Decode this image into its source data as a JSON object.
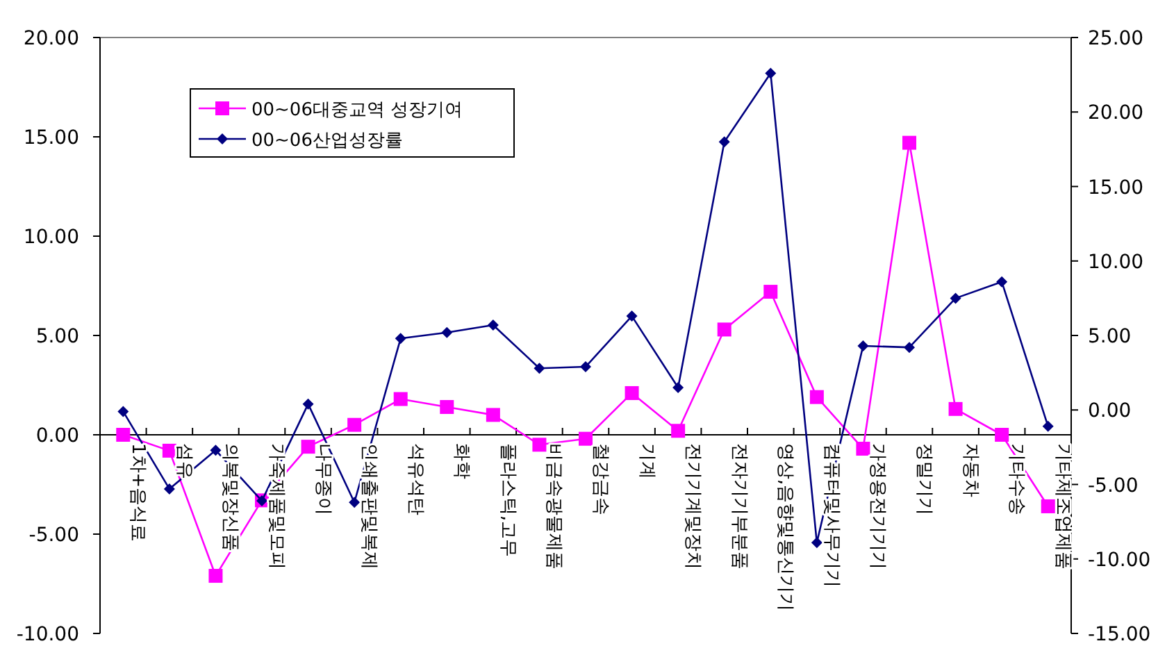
{
  "chart_data": {
    "type": "line",
    "categories": [
      "1차+음식료",
      "섬유",
      "의복및장신품",
      "가죽제품및모피",
      "나무종이",
      "인쇄출판및복제",
      "석유석탄",
      "화학",
      "플라스틱,고무",
      "비금속광물제품",
      "철강금속",
      "기계",
      "전기기계및장치",
      "전자기기부분품",
      "영상,음향및통신기기",
      "컴퓨터및사무기기",
      "가정용전기기기",
      "정밀기기",
      "자동차",
      "기타수송",
      "기타제조업제품"
    ],
    "series": [
      {
        "name": "00~06대중교역 성장기여",
        "color": "#ff00ff",
        "marker": "square",
        "values": [
          0.0,
          -0.8,
          -7.1,
          -3.3,
          -0.6,
          0.5,
          1.8,
          1.4,
          1.0,
          -0.5,
          -0.2,
          2.1,
          0.2,
          5.3,
          7.2,
          1.9,
          -0.7,
          14.7,
          1.3,
          0.0,
          -3.6
        ]
      },
      {
        "name": "00~06산업성장률",
        "color": "#000080",
        "marker": "diamond",
        "axis": "y2",
        "values": [
          -0.1,
          -5.3,
          -2.7,
          -6.1,
          0.4,
          -6.2,
          4.8,
          5.2,
          5.7,
          2.8,
          2.9,
          6.3,
          1.5,
          18.0,
          22.6,
          -8.9,
          4.3,
          4.2,
          7.5,
          8.6,
          -1.1
        ]
      }
    ],
    "ylim": [
      -10,
      20
    ],
    "yticks": [
      {
        "value": -10,
        "label": "-10.00"
      },
      {
        "value": -5,
        "label": "-5.00"
      },
      {
        "value": 0,
        "label": "0.00"
      },
      {
        "value": 5,
        "label": "5.00"
      },
      {
        "value": 10,
        "label": "10.00"
      },
      {
        "value": 15,
        "label": "15.00"
      },
      {
        "value": 20,
        "label": "20.00"
      }
    ],
    "y2lim": [
      -15,
      25
    ],
    "y2ticks": [
      {
        "value": -15,
        "label": "-15.00"
      },
      {
        "value": -10,
        "label": "-10.00"
      },
      {
        "value": -5,
        "label": "-5.00"
      },
      {
        "value": 0,
        "label": "0.00"
      },
      {
        "value": 5,
        "label": "5.00"
      },
      {
        "value": 10,
        "label": "10.00"
      },
      {
        "value": 15,
        "label": "15.00"
      },
      {
        "value": 20,
        "label": "20.00"
      },
      {
        "value": 25,
        "label": "25.00"
      }
    ],
    "legend": "top left",
    "grid": false
  }
}
